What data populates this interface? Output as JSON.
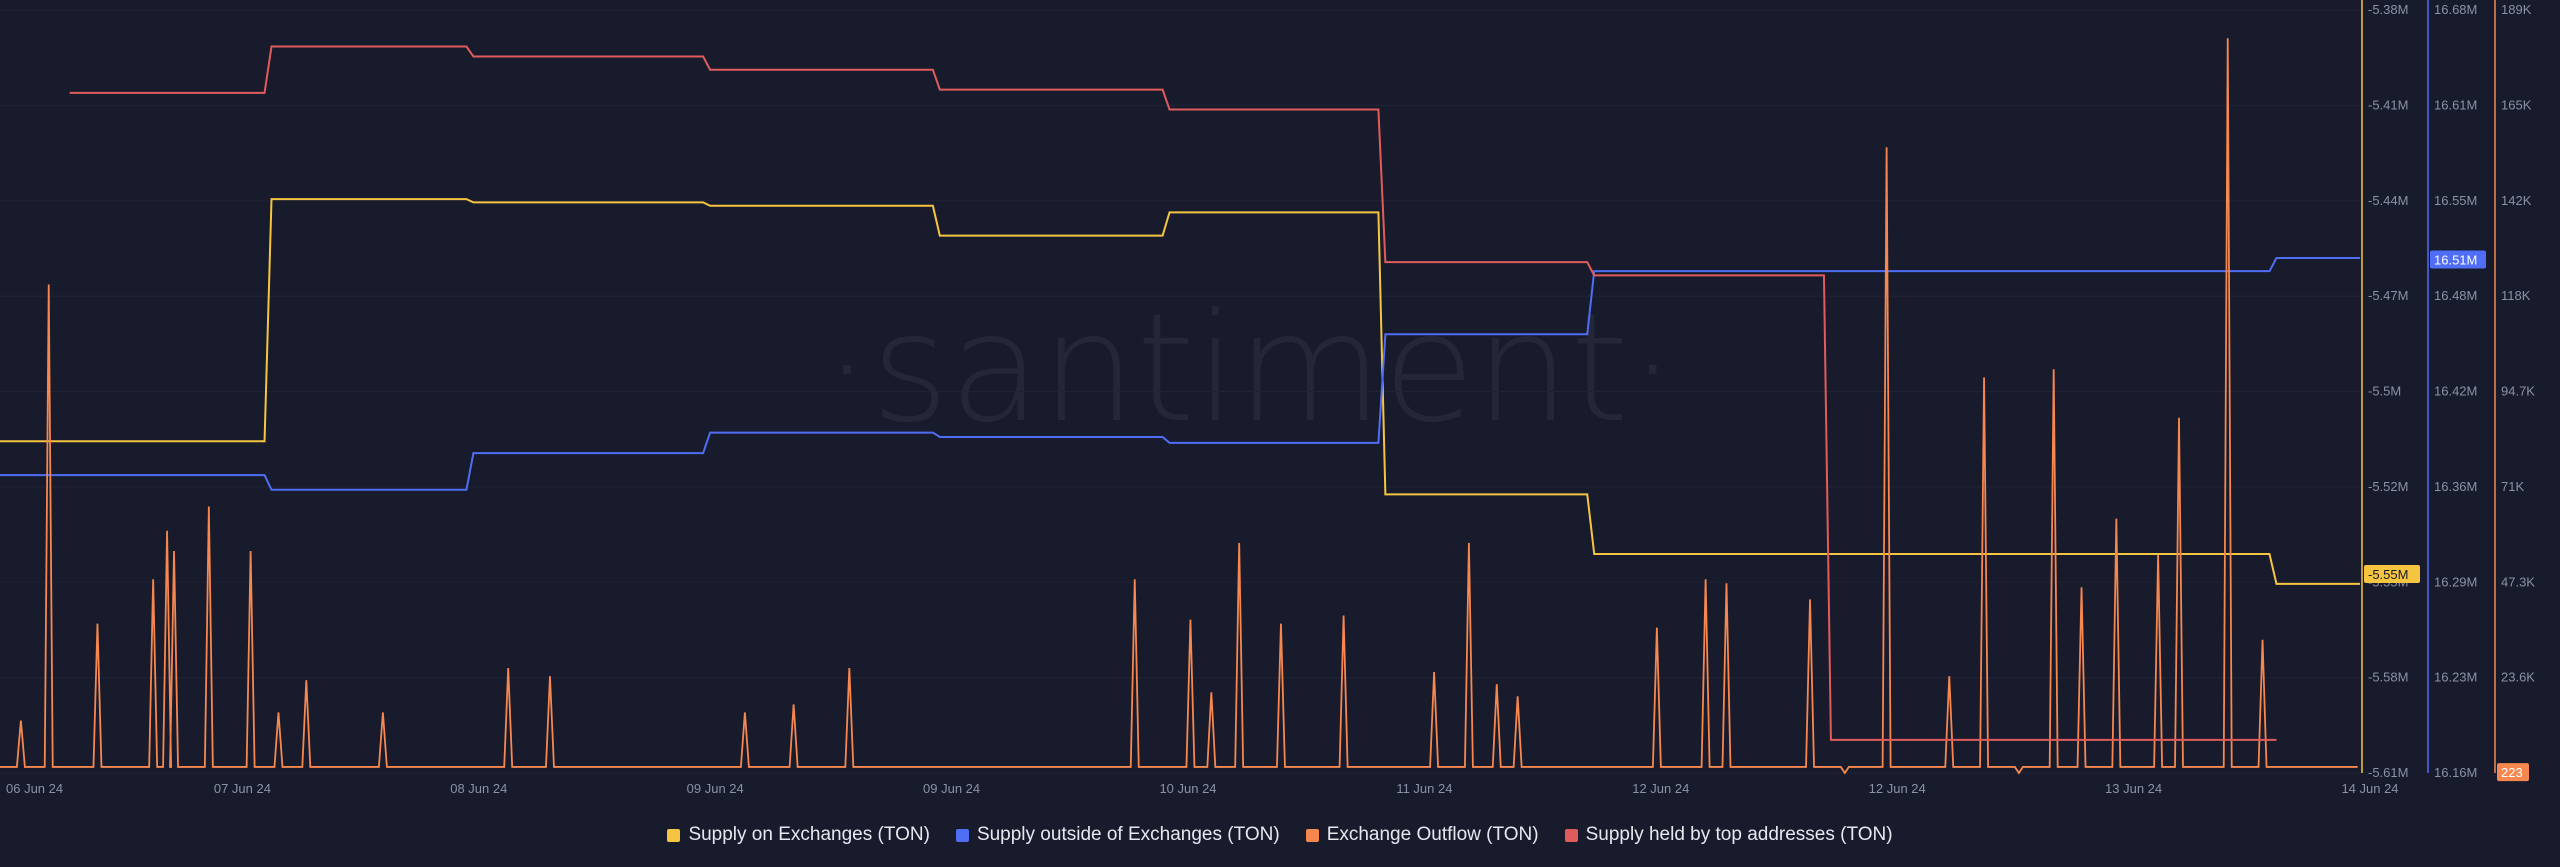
{
  "watermark": "·santiment·",
  "chart_data": {
    "type": "line",
    "x_axis": {
      "ticks": [
        "06 Jun 24",
        "07 Jun 24",
        "08 Jun 24",
        "09 Jun 24",
        "09 Jun 24",
        "10 Jun 24",
        "11 Jun 24",
        "12 Jun 24",
        "12 Jun 24",
        "13 Jun 24",
        "14 Jun 24"
      ]
    },
    "y_axes": [
      {
        "id": "exchanges",
        "ticks": [
          "-5.38M",
          "-5.41M",
          "-5.44M",
          "-5.47M",
          "-5.5M",
          "-5.52M",
          "-5.55M",
          "-5.58M",
          "-5.61M"
        ],
        "range": [
          -5.61,
          -5.38
        ],
        "unit": "M",
        "color": "#f5c542"
      },
      {
        "id": "outside",
        "ticks": [
          "16.68M",
          "16.61M",
          "16.55M",
          "16.48M",
          "16.42M",
          "16.36M",
          "16.29M",
          "16.23M",
          "16.16M"
        ],
        "range": [
          16.16,
          16.68
        ],
        "unit": "M",
        "color": "#4f6df5"
      },
      {
        "id": "outflow",
        "ticks": [
          "189K",
          "165K",
          "142K",
          "118K",
          "94.7K",
          "71K",
          "47.3K",
          "23.6K",
          "0"
        ],
        "range": [
          0,
          189
        ],
        "unit": "K",
        "color": "#f5874f"
      }
    ],
    "current_value_badges": [
      {
        "axis": "exchanges",
        "label": "-5.55M",
        "value": -5.55,
        "color": "#f5c542",
        "text_color": "#181b2b"
      },
      {
        "axis": "outside",
        "label": "16.51M",
        "value": 16.51,
        "color": "#4f6df5",
        "text_color": "#ffffff"
      },
      {
        "axis": "outflow",
        "label": "223",
        "value": 0.223,
        "color": "#f5874f",
        "text_color": "#ffffff"
      }
    ],
    "series": [
      {
        "name": "Supply on Exchanges (TON)",
        "color": "#f5c542",
        "axis": "exchanges",
        "x": [
          0,
          0.38,
          0.39,
          0.67,
          0.68,
          1.01,
          1.02,
          1.34,
          1.35,
          1.67,
          1.68,
          1.98,
          1.99,
          2.28,
          2.29,
          2.62,
          2.63,
          2.96,
          2.97,
          3.26,
          3.27,
          3.39
        ],
        "y": [
          -5.51,
          -5.51,
          -5.437,
          -5.437,
          -5.438,
          -5.438,
          -5.439,
          -5.439,
          -5.448,
          -5.448,
          -5.441,
          -5.441,
          -5.526,
          -5.526,
          -5.544,
          -5.544,
          -5.544,
          -5.544,
          -5.544,
          -5.544,
          -5.553,
          -5.553
        ]
      },
      {
        "name": "Supply outside of Exchanges (TON)",
        "color": "#4f6df5",
        "axis": "outside",
        "x": [
          0,
          0.38,
          0.39,
          0.67,
          0.68,
          1.01,
          1.02,
          1.34,
          1.35,
          1.67,
          1.68,
          1.98,
          1.99,
          2.28,
          2.29,
          2.62,
          2.63,
          2.96,
          2.97,
          3.26,
          3.27,
          3.39
        ],
        "y": [
          16.363,
          16.363,
          16.353,
          16.353,
          16.378,
          16.378,
          16.392,
          16.392,
          16.389,
          16.389,
          16.385,
          16.385,
          16.459,
          16.459,
          16.502,
          16.502,
          16.502,
          16.502,
          16.502,
          16.502,
          16.511,
          16.511
        ]
      },
      {
        "name": "Exchange Outflow (TON)",
        "color": "#f5874f",
        "axis": "outflow",
        "x": [
          0.03,
          0.07,
          0.14,
          0.22,
          0.24,
          0.25,
          0.3,
          0.36,
          0.4,
          0.44,
          0.55,
          0.73,
          0.79,
          1.07,
          1.14,
          1.22,
          1.63,
          1.71,
          1.74,
          1.78,
          1.84,
          1.93,
          2.06,
          2.11,
          2.15,
          2.18,
          2.38,
          2.45,
          2.48,
          2.6,
          2.65,
          2.71,
          2.8,
          2.85,
          2.9,
          2.95,
          2.99,
          3.04,
          3.1,
          3.13,
          3.2,
          3.25
        ],
        "y": [
          13,
          121,
          37,
          48,
          60,
          55,
          66,
          55,
          15,
          23,
          15,
          26,
          24,
          15,
          17,
          26,
          48,
          38,
          20,
          57,
          37,
          39,
          25,
          57,
          22,
          19,
          36,
          48,
          47,
          43,
          0,
          155,
          24,
          98,
          0,
          100,
          46,
          63,
          54,
          88,
          182,
          33
        ]
      },
      {
        "name": "Supply held by top addresses (TON)",
        "color": "#e05c5c",
        "axis": "exchanges",
        "x": [
          0.1,
          0.38,
          0.39,
          0.67,
          0.68,
          1.01,
          1.02,
          1.34,
          1.35,
          1.67,
          1.68,
          1.98,
          1.99,
          2.28,
          2.29,
          2.62,
          2.63,
          2.96,
          2.97,
          3.26,
          3.27
        ],
        "y": [
          -5.405,
          -5.405,
          -5.391,
          -5.391,
          -5.394,
          -5.394,
          -5.398,
          -5.398,
          -5.404,
          -5.404,
          -5.41,
          -5.41,
          -5.456,
          -5.456,
          -5.46,
          -5.46,
          -5.6,
          -5.6,
          -5.6,
          -5.6,
          -5.6
        ]
      }
    ],
    "legend_position": "bottom-center",
    "grid": true,
    "title": "",
    "xlabel": "",
    "ylabel": ""
  },
  "legend": [
    {
      "label": "Supply on Exchanges (TON)",
      "color": "#f5c542"
    },
    {
      "label": "Supply outside of Exchanges (TON)",
      "color": "#4f6df5"
    },
    {
      "label": "Exchange Outflow (TON)",
      "color": "#f5874f"
    },
    {
      "label": "Supply held by top addresses (TON)",
      "color": "#e05c5c"
    }
  ]
}
